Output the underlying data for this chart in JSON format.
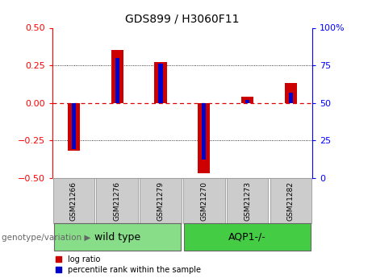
{
  "title": "GDS899 / H3060F11",
  "samples": [
    "GSM21266",
    "GSM21276",
    "GSM21279",
    "GSM21270",
    "GSM21273",
    "GSM21282"
  ],
  "log_ratio": [
    -0.32,
    0.355,
    0.27,
    -0.47,
    0.04,
    0.13
  ],
  "percentile_rank": [
    19,
    80,
    76,
    12,
    52,
    57
  ],
  "groups": [
    {
      "label": "wild type",
      "color_light": "#ccf0bb",
      "color_dark": "#88dd88",
      "indices": [
        0,
        1,
        2
      ]
    },
    {
      "label": "AQP1-/-",
      "color_light": "#88ee66",
      "color_dark": "#44cc44",
      "indices": [
        3,
        4,
        5
      ]
    }
  ],
  "ylim_left": [
    -0.5,
    0.5
  ],
  "ylim_right": [
    0,
    100
  ],
  "yticks_left": [
    -0.5,
    -0.25,
    0,
    0.25,
    0.5
  ],
  "yticks_right": [
    0,
    25,
    50,
    75,
    100
  ],
  "red_color": "#cc0000",
  "blue_color": "#0000cc",
  "zero_line_color": "#dd0000",
  "sample_box_color": "#cccccc",
  "background_color": "#ffffff",
  "legend_red_label": "log ratio",
  "legend_blue_label": "percentile rank within the sample",
  "genotype_label": "genotype/variation"
}
